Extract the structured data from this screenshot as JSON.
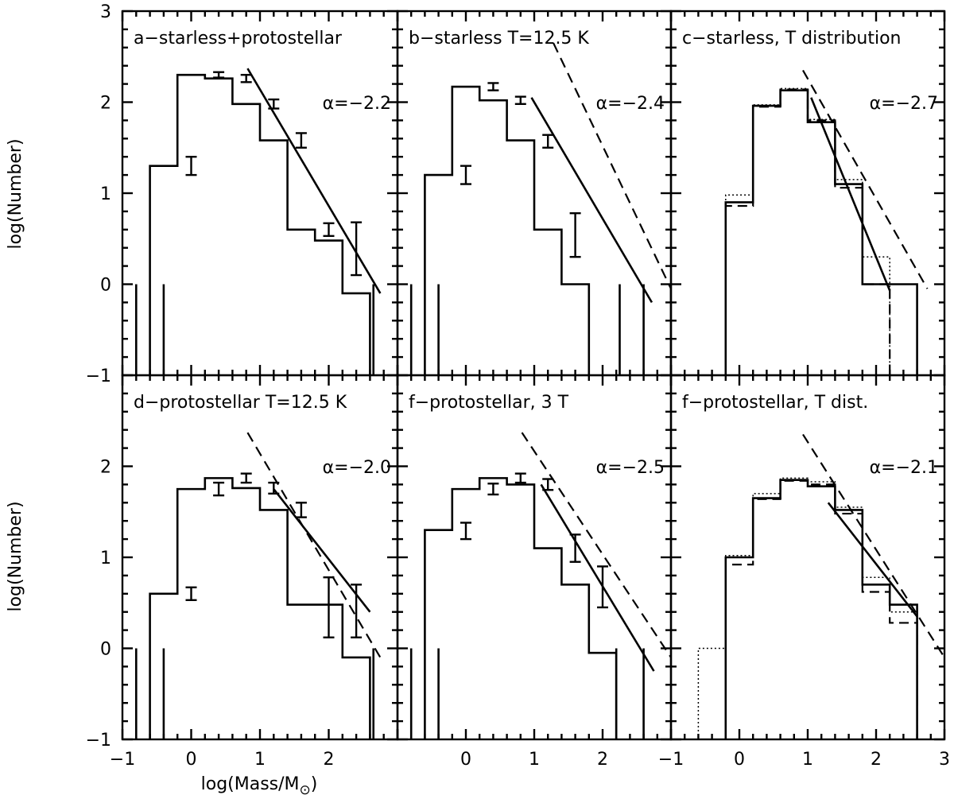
{
  "figure": {
    "xlabel": "log(Mass/M⊙)",
    "ylabel": "log(Number)"
  },
  "chart_data": [
    {
      "type": "bar",
      "id": "a",
      "title": "a−starless+protostellar",
      "alpha_label": "α=−2.2",
      "xlim": [
        -1,
        3
      ],
      "ylim": [
        -1,
        3
      ],
      "xticks": [],
      "yticks": [
        "−1",
        "0",
        "1",
        "2",
        "3"
      ],
      "bin_edges": [
        -0.6,
        -0.2,
        0.2,
        0.6,
        1.0,
        1.4,
        1.8,
        2.2,
        2.6,
        3.0
      ],
      "series": [
        {
          "name": "histogram",
          "style": "solid",
          "values": [
            1.3,
            2.3,
            2.26,
            1.98,
            1.58,
            0.6,
            0.48,
            -0.1
          ]
        }
      ],
      "errorbars": [
        {
          "x": 0.0,
          "lo": 1.2,
          "hi": 1.4
        },
        {
          "x": 0.4,
          "lo": 2.27,
          "hi": 2.33
        },
        {
          "x": 0.8,
          "lo": 2.22,
          "hi": 2.3
        },
        {
          "x": 1.2,
          "lo": 1.93,
          "hi": 2.03
        },
        {
          "x": 1.6,
          "lo": 1.5,
          "hi": 1.66
        },
        {
          "x": 2.0,
          "lo": 0.53,
          "hi": 0.67
        },
        {
          "x": 2.4,
          "lo": 0.1,
          "hi": 0.68
        }
      ],
      "upper_limits": [
        -0.8,
        -0.4,
        2.65
      ],
      "fits": [
        {
          "style": "solid",
          "x": [
            0.82,
            2.75
          ],
          "y": [
            2.37,
            -0.1
          ]
        }
      ]
    },
    {
      "type": "bar",
      "id": "b",
      "title": "b−starless T=12.5 K",
      "alpha_label": "α=−2.4",
      "xlim": [
        -1,
        3
      ],
      "ylim": [
        -1,
        3
      ],
      "xticks": [],
      "yticks": [],
      "bin_edges": [
        -0.6,
        -0.2,
        0.2,
        0.6,
        1.0,
        1.4,
        1.8,
        2.2,
        2.6
      ],
      "series": [
        {
          "name": "histogram",
          "style": "solid",
          "values": [
            1.2,
            2.17,
            2.02,
            1.58,
            0.6,
            0.0
          ]
        }
      ],
      "errorbars": [
        {
          "x": 0.0,
          "lo": 1.1,
          "hi": 1.3
        },
        {
          "x": 0.4,
          "lo": 2.13,
          "hi": 2.21
        },
        {
          "x": 0.8,
          "lo": 1.98,
          "hi": 2.06
        },
        {
          "x": 1.2,
          "lo": 1.5,
          "hi": 1.64
        },
        {
          "x": 1.6,
          "lo": 0.3,
          "hi": 0.78
        }
      ],
      "upper_limits": [
        -0.8,
        -0.4,
        2.25,
        2.6,
        3.0
      ],
      "fits": [
        {
          "style": "solid",
          "x": [
            0.96,
            2.72
          ],
          "y": [
            2.05,
            -0.2
          ]
        },
        {
          "style": "dashed",
          "x": [
            1.28,
            3.0
          ],
          "y": [
            2.65,
            -0.05
          ]
        }
      ]
    },
    {
      "type": "bar",
      "id": "c",
      "title": "c−starless, T distribution",
      "alpha_label": "α=−2.7",
      "xlim": [
        -1,
        3
      ],
      "ylim": [
        -1,
        3
      ],
      "xticks": [],
      "yticks": [],
      "bin_edges": [
        -0.2,
        0.2,
        0.6,
        1.0,
        1.4,
        1.8,
        2.2,
        2.6
      ],
      "series": [
        {
          "name": "histogram",
          "style": "solid",
          "values": [
            0.9,
            1.96,
            2.13,
            1.78,
            1.1,
            0.0,
            0.0
          ]
        },
        {
          "name": "alternate-1",
          "style": "dashed",
          "values": [
            0.86,
            1.95,
            2.14,
            1.8,
            1.06,
            0.0,
            null
          ]
        },
        {
          "name": "alternate-2",
          "style": "dotted",
          "values": [
            0.98,
            1.97,
            2.15,
            1.81,
            1.15,
            0.3,
            null
          ]
        }
      ],
      "errorbars": [],
      "upper_limits": [],
      "fits": [
        {
          "style": "solid",
          "x": [
            1.05,
            2.2
          ],
          "y": [
            2.05,
            -0.07
          ]
        },
        {
          "style": "dashed",
          "x": [
            0.93,
            2.75
          ],
          "y": [
            2.35,
            -0.05
          ]
        }
      ]
    },
    {
      "type": "bar",
      "id": "d",
      "title": "d−protostellar T=12.5 K",
      "alpha_label": "α=−2.0",
      "xlim": [
        -1,
        3
      ],
      "ylim": [
        -1,
        3
      ],
      "xticks": [
        "−1",
        "0",
        "1",
        "2"
      ],
      "yticks": [
        "−1",
        "0",
        "1",
        "2"
      ],
      "bin_edges": [
        -0.6,
        -0.2,
        0.2,
        0.6,
        1.0,
        1.4,
        1.8,
        2.2,
        2.6,
        3.0
      ],
      "series": [
        {
          "name": "histogram",
          "style": "solid",
          "values": [
            0.6,
            1.75,
            1.87,
            1.76,
            1.52,
            0.48,
            0.48,
            -0.1
          ]
        }
      ],
      "errorbars": [
        {
          "x": 0.0,
          "lo": 0.53,
          "hi": 0.67
        },
        {
          "x": 0.4,
          "lo": 1.68,
          "hi": 1.82
        },
        {
          "x": 0.8,
          "lo": 1.82,
          "hi": 1.92
        },
        {
          "x": 1.2,
          "lo": 1.7,
          "hi": 1.82
        },
        {
          "x": 1.6,
          "lo": 1.44,
          "hi": 1.6
        },
        {
          "x": 2.0,
          "lo": 0.12,
          "hi": 0.78
        },
        {
          "x": 2.4,
          "lo": 0.12,
          "hi": 0.7
        }
      ],
      "upper_limits": [
        -0.8,
        -0.4,
        2.65
      ],
      "fits": [
        {
          "style": "solid",
          "x": [
            1.2,
            2.6
          ],
          "y": [
            1.75,
            0.4
          ]
        },
        {
          "style": "dashed",
          "x": [
            0.82,
            2.75
          ],
          "y": [
            2.37,
            -0.1
          ]
        }
      ]
    },
    {
      "type": "bar",
      "id": "e",
      "title": "f−protostellar, 3 T",
      "alpha_label": "α=−2.5",
      "xlim": [
        -1,
        3
      ],
      "ylim": [
        -1,
        3
      ],
      "xticks": [
        "0",
        "1",
        "2"
      ],
      "yticks": [],
      "bin_edges": [
        -0.6,
        -0.2,
        0.2,
        0.6,
        1.0,
        1.4,
        1.8,
        2.2,
        2.6
      ],
      "series": [
        {
          "name": "histogram",
          "style": "solid",
          "values": [
            1.3,
            1.75,
            1.87,
            1.8,
            1.1,
            0.7,
            -0.05
          ]
        }
      ],
      "errorbars": [
        {
          "x": 0.0,
          "lo": 1.2,
          "hi": 1.38
        },
        {
          "x": 0.4,
          "lo": 1.69,
          "hi": 1.81
        },
        {
          "x": 0.8,
          "lo": 1.82,
          "hi": 1.92
        },
        {
          "x": 1.2,
          "lo": 1.74,
          "hi": 1.86
        },
        {
          "x": 1.6,
          "lo": 0.95,
          "hi": 1.25
        },
        {
          "x": 2.0,
          "lo": 0.45,
          "hi": 0.9
        }
      ],
      "upper_limits": [
        -0.8,
        -0.4,
        2.2,
        2.6
      ],
      "fits": [
        {
          "style": "solid",
          "x": [
            1.1,
            2.75
          ],
          "y": [
            1.8,
            -0.25
          ]
        },
        {
          "style": "dashed",
          "x": [
            0.82,
            3.0
          ],
          "y": [
            2.37,
            -0.1
          ]
        }
      ]
    },
    {
      "type": "bar",
      "id": "f",
      "title": "f−protostellar, T dist.",
      "alpha_label": "α=−2.1",
      "xlim": [
        -1,
        3
      ],
      "ylim": [
        -1,
        3
      ],
      "xticks": [
        "−1",
        "0",
        "1",
        "2",
        "3"
      ],
      "yticks": [],
      "bin_edges": [
        -0.2,
        0.2,
        0.6,
        1.0,
        1.4,
        1.8,
        2.2,
        2.6
      ],
      "series": [
        {
          "name": "histogram",
          "style": "solid",
          "values": [
            1.0,
            1.65,
            1.85,
            1.78,
            1.52,
            0.7,
            0.48
          ]
        },
        {
          "name": "alternate-1",
          "style": "dashed",
          "values": [
            0.92,
            1.64,
            1.84,
            1.8,
            1.48,
            0.62,
            0.28
          ]
        },
        {
          "name": "alternate-2",
          "style": "dotted",
          "values": [
            1.02,
            1.7,
            1.87,
            1.83,
            1.55,
            0.78,
            0.4
          ]
        }
      ],
      "extra_dotted_bin": {
        "edges": [
          -0.6,
          -0.2
        ],
        "value": 0.0
      },
      "errorbars": [],
      "upper_limits": [],
      "fits": [
        {
          "style": "solid",
          "x": [
            1.3,
            2.6
          ],
          "y": [
            1.6,
            0.35
          ]
        },
        {
          "style": "dashed",
          "x": [
            0.93,
            3.0
          ],
          "y": [
            2.35,
            -0.1
          ]
        }
      ]
    }
  ]
}
